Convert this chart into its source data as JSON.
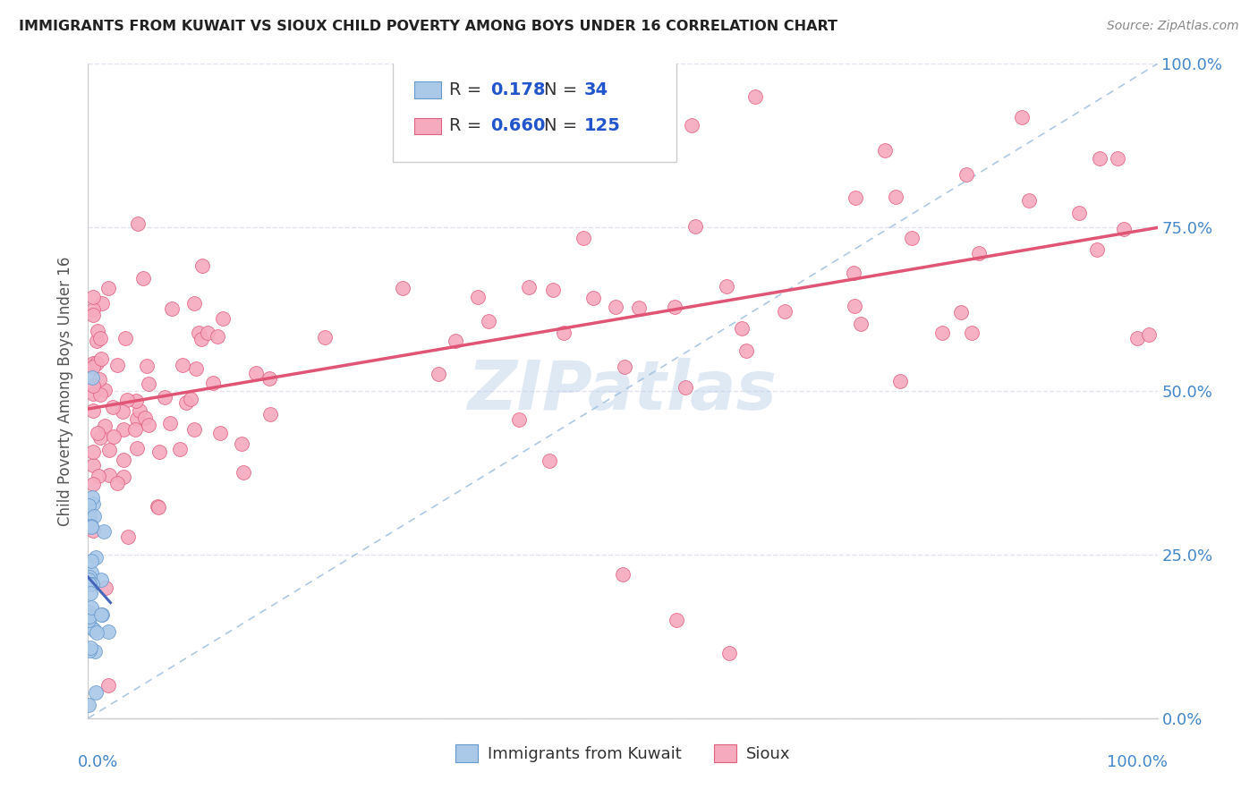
{
  "title": "IMMIGRANTS FROM KUWAIT VS SIOUX CHILD POVERTY AMONG BOYS UNDER 16 CORRELATION CHART",
  "source": "Source: ZipAtlas.com",
  "ylabel": "Child Poverty Among Boys Under 16",
  "ytick_labels": [
    "0.0%",
    "25.0%",
    "50.0%",
    "75.0%",
    "100.0%"
  ],
  "xlim": [
    0.0,
    1.0
  ],
  "ylim": [
    0.0,
    1.0
  ],
  "watermark": "ZIPatlas",
  "r_kuwait": 0.178,
  "n_kuwait": 34,
  "r_sioux": 0.66,
  "n_sioux": 125,
  "color_kuwait": "#aac8e8",
  "color_sioux": "#f5aabe",
  "edge_kuwait": "#6699cc",
  "edge_sioux": "#e06080",
  "trendline_kuwait_color": "#4466bb",
  "trendline_sioux_color": "#e05575",
  "dashed_color": "#99bbdd",
  "background_color": "#ffffff",
  "grid_color": "#ddddee",
  "title_color": "#222222",
  "axis_label_color": "#4488cc",
  "legend_value_color": "#2255cc"
}
